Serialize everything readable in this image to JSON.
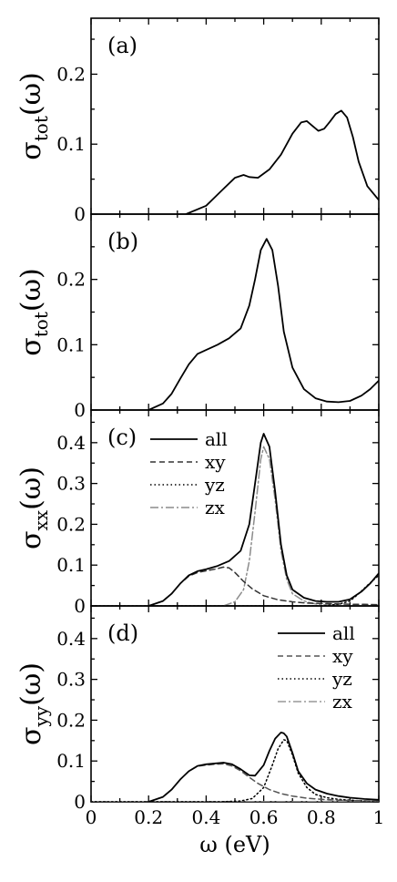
{
  "chart_data": [
    {
      "type": "line",
      "panel_label": "(a)",
      "ylabel": {
        "main": "σ",
        "sub": "tot",
        "arg": "(ω)"
      },
      "xlim": [
        0,
        1
      ],
      "ylim": [
        0,
        0.28
      ],
      "xticks": [
        0,
        0.2,
        0.4,
        0.6,
        0.8,
        1
      ],
      "yticks": [
        0,
        0.1,
        0.2
      ],
      "ytick_labels": [
        "0",
        "0.1",
        "0.2"
      ],
      "legend": [],
      "series": [
        {
          "style": "solid",
          "color": "#000000",
          "x": [
            0.33,
            0.4,
            0.45,
            0.5,
            0.53,
            0.55,
            0.58,
            0.62,
            0.66,
            0.7,
            0.73,
            0.75,
            0.77,
            0.79,
            0.81,
            0.83,
            0.85,
            0.87,
            0.89,
            0.91,
            0.93,
            0.96,
            1.0
          ],
          "y": [
            0.0,
            0.012,
            0.032,
            0.052,
            0.056,
            0.053,
            0.052,
            0.064,
            0.085,
            0.115,
            0.131,
            0.133,
            0.126,
            0.119,
            0.122,
            0.132,
            0.143,
            0.148,
            0.138,
            0.11,
            0.075,
            0.04,
            0.02
          ]
        }
      ]
    },
    {
      "type": "line",
      "panel_label": "(b)",
      "ylabel": {
        "main": "σ",
        "sub": "tot",
        "arg": "(ω)"
      },
      "xlim": [
        0,
        1
      ],
      "ylim": [
        0,
        0.3
      ],
      "xticks": [
        0,
        0.2,
        0.4,
        0.6,
        0.8,
        1
      ],
      "yticks": [
        0,
        0.1,
        0.2
      ],
      "ytick_labels": [
        "0",
        "0.1",
        "0.2"
      ],
      "legend": [],
      "series": [
        {
          "style": "solid",
          "color": "#000000",
          "x": [
            0.2,
            0.25,
            0.28,
            0.31,
            0.34,
            0.37,
            0.4,
            0.44,
            0.48,
            0.52,
            0.55,
            0.57,
            0.59,
            0.61,
            0.63,
            0.65,
            0.67,
            0.7,
            0.74,
            0.78,
            0.82,
            0.86,
            0.9,
            0.94,
            0.97,
            1.0
          ],
          "y": [
            0.0,
            0.01,
            0.025,
            0.048,
            0.07,
            0.086,
            0.092,
            0.1,
            0.11,
            0.125,
            0.16,
            0.2,
            0.245,
            0.262,
            0.245,
            0.19,
            0.12,
            0.065,
            0.032,
            0.018,
            0.013,
            0.012,
            0.014,
            0.022,
            0.032,
            0.045
          ]
        }
      ]
    },
    {
      "type": "line",
      "panel_label": "(c)",
      "ylabel": {
        "main": "σ",
        "sub": "xx",
        "arg": "(ω)"
      },
      "xlim": [
        0,
        1
      ],
      "ylim": [
        0,
        0.48
      ],
      "xticks": [
        0,
        0.2,
        0.4,
        0.6,
        0.8,
        1
      ],
      "yticks": [
        0,
        0.1,
        0.2,
        0.3,
        0.4
      ],
      "ytick_labels": [
        "0",
        "0.1",
        "0.2",
        "0.3",
        "0.4"
      ],
      "legend": [
        "all",
        "xy",
        "yz",
        "zx"
      ],
      "legend_position": "top-left",
      "series": [
        {
          "name": "all",
          "style": "solid",
          "color": "#000000",
          "x": [
            0.2,
            0.25,
            0.28,
            0.31,
            0.34,
            0.37,
            0.4,
            0.44,
            0.48,
            0.52,
            0.55,
            0.57,
            0.59,
            0.6,
            0.62,
            0.64,
            0.66,
            0.68,
            0.7,
            0.74,
            0.78,
            0.82,
            0.86,
            0.9,
            0.94,
            0.97,
            1.0
          ],
          "y": [
            0.0,
            0.012,
            0.03,
            0.055,
            0.075,
            0.085,
            0.09,
            0.098,
            0.11,
            0.135,
            0.2,
            0.3,
            0.4,
            0.422,
            0.39,
            0.28,
            0.15,
            0.075,
            0.04,
            0.02,
            0.012,
            0.01,
            0.01,
            0.016,
            0.035,
            0.055,
            0.08
          ]
        },
        {
          "name": "xy",
          "style": "dashed",
          "color": "#333333",
          "x": [
            0.2,
            0.25,
            0.28,
            0.31,
            0.34,
            0.37,
            0.4,
            0.43,
            0.46,
            0.48,
            0.5,
            0.53,
            0.56,
            0.6,
            0.65,
            0.7,
            0.75,
            0.8,
            0.85,
            0.9,
            0.95,
            1.0
          ],
          "y": [
            0.0,
            0.012,
            0.03,
            0.055,
            0.073,
            0.082,
            0.086,
            0.09,
            0.095,
            0.093,
            0.082,
            0.06,
            0.042,
            0.025,
            0.015,
            0.01,
            0.007,
            0.006,
            0.005,
            0.004,
            0.004,
            0.003
          ]
        },
        {
          "name": "yz",
          "style": "dotted",
          "color": "#000000",
          "x": [
            0.0,
            0.5,
            0.8,
            0.86,
            0.9,
            0.93,
            0.96,
            1.0
          ],
          "y": [
            0.0,
            0.0,
            0.0,
            0.004,
            0.012,
            0.03,
            0.05,
            0.075
          ]
        },
        {
          "name": "zx",
          "style": "dashdot",
          "color": "#8c8c8c",
          "x": [
            0.46,
            0.5,
            0.53,
            0.55,
            0.57,
            0.59,
            0.6,
            0.62,
            0.64,
            0.66,
            0.68,
            0.7,
            0.74,
            0.78,
            0.82,
            0.86,
            0.9,
            0.95,
            1.0
          ],
          "y": [
            0.0,
            0.01,
            0.04,
            0.11,
            0.23,
            0.36,
            0.39,
            0.36,
            0.26,
            0.135,
            0.065,
            0.03,
            0.012,
            0.005,
            0.002,
            0.001,
            0.0,
            0.0,
            0.0
          ]
        }
      ]
    },
    {
      "type": "line",
      "panel_label": "(d)",
      "ylabel": {
        "main": "σ",
        "sub": "yy",
        "arg": "(ω)"
      },
      "xlim": [
        0,
        1
      ],
      "ylim": [
        0,
        0.48
      ],
      "xticks": [
        0,
        0.2,
        0.4,
        0.6,
        0.8,
        1
      ],
      "xtick_labels": [
        "0",
        "0.2",
        "0.4",
        "0.6",
        "0.8",
        "1"
      ],
      "yticks": [
        0,
        0.1,
        0.2,
        0.3,
        0.4
      ],
      "ytick_labels": [
        "0",
        "0.1",
        "0.2",
        "0.3",
        "0.4"
      ],
      "xlabel": "ω (eV)",
      "legend": [
        "all",
        "xy",
        "yz",
        "zx"
      ],
      "legend_position": "top-right",
      "series": [
        {
          "name": "all",
          "style": "solid",
          "color": "#000000",
          "x": [
            0.2,
            0.25,
            0.28,
            0.31,
            0.34,
            0.37,
            0.4,
            0.43,
            0.46,
            0.49,
            0.52,
            0.55,
            0.57,
            0.6,
            0.62,
            0.64,
            0.66,
            0.67,
            0.68,
            0.7,
            0.72,
            0.75,
            0.78,
            0.82,
            0.86,
            0.9,
            0.95,
            1.0
          ],
          "y": [
            0.0,
            0.012,
            0.03,
            0.055,
            0.075,
            0.088,
            0.092,
            0.094,
            0.096,
            0.092,
            0.08,
            0.065,
            0.064,
            0.09,
            0.125,
            0.155,
            0.17,
            0.168,
            0.16,
            0.12,
            0.075,
            0.045,
            0.03,
            0.02,
            0.014,
            0.01,
            0.007,
            0.005
          ]
        },
        {
          "name": "xy",
          "style": "dashed",
          "color": "#555555",
          "x": [
            0.2,
            0.25,
            0.28,
            0.31,
            0.34,
            0.37,
            0.4,
            0.43,
            0.46,
            0.49,
            0.52,
            0.55,
            0.58,
            0.62,
            0.66,
            0.7,
            0.75,
            0.8,
            0.86,
            0.92,
            1.0
          ],
          "y": [
            0.0,
            0.012,
            0.03,
            0.055,
            0.075,
            0.087,
            0.09,
            0.092,
            0.093,
            0.088,
            0.076,
            0.06,
            0.045,
            0.03,
            0.02,
            0.014,
            0.009,
            0.006,
            0.004,
            0.003,
            0.002
          ]
        },
        {
          "name": "yz",
          "style": "dotted",
          "color": "#000000",
          "x": [
            0.0,
            0.45,
            0.52,
            0.56,
            0.6,
            0.63,
            0.65,
            0.67,
            0.68,
            0.7,
            0.72,
            0.75,
            0.78,
            0.82,
            0.86,
            0.9,
            0.95,
            1.0
          ],
          "y": [
            0.0,
            0.0,
            0.002,
            0.008,
            0.035,
            0.09,
            0.13,
            0.152,
            0.15,
            0.115,
            0.07,
            0.035,
            0.018,
            0.01,
            0.006,
            0.004,
            0.002,
            0.001
          ]
        },
        {
          "name": "zx",
          "style": "dashdot",
          "color": "#999999",
          "x": [
            0.0,
            0.7,
            0.8,
            0.9,
            1.0
          ],
          "y": [
            0.0,
            0.0,
            0.001,
            0.002,
            0.002
          ]
        }
      ]
    }
  ]
}
